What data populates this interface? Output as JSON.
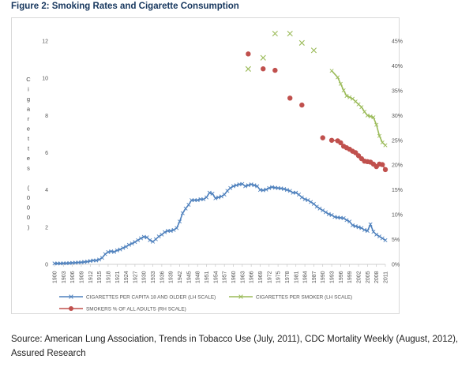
{
  "figure_title": "Figure 2: Smoking Rates and Cigarette Consumption",
  "source_text": "Source: American Lung Association, Trends in Tobacco Use (July, 2011), CDC Mortality Weekly (August, 2012), Assured Research",
  "chart_data": {
    "type": "line",
    "title": "",
    "ylabel_left": "Cigarettes (000)",
    "left_axis": {
      "min": 0,
      "max": 12,
      "ticks": [
        0,
        2,
        4,
        6,
        8,
        10,
        12
      ]
    },
    "right_axis": {
      "min": 0,
      "max": 45,
      "ticks": [
        0,
        5,
        10,
        15,
        20,
        25,
        30,
        35,
        40,
        45
      ],
      "tick_labels": [
        "0%",
        "5%",
        "10%",
        "15%",
        "20%",
        "25%",
        "30%",
        "35%",
        "40%",
        "45%"
      ]
    },
    "x_range": [
      1900,
      2011
    ],
    "x_tick_labels": [
      "1900",
      "1903",
      "1906",
      "1909",
      "1912",
      "1915",
      "1918",
      "1921",
      "1924",
      "1927",
      "1930",
      "1933",
      "1936",
      "1939",
      "1942",
      "1945",
      "1948",
      "1951",
      "1954",
      "1957",
      "1960",
      "1963",
      "1966",
      "1969",
      "1972",
      "1975",
      "1978",
      "1981",
      "1984",
      "1987",
      "1990",
      "1993",
      "1996",
      "1999",
      "2002",
      "2005",
      "2008",
      "2011"
    ],
    "legend_position": "bottom",
    "grid": false,
    "series": [
      {
        "name": "CIGARETTES PER CAPITA 18 AND OLDER (LH SCALE)",
        "axis": "left",
        "color": "#4f81bd",
        "marker": "x",
        "x": [
          1900,
          1901,
          1902,
          1903,
          1904,
          1905,
          1906,
          1907,
          1908,
          1909,
          1910,
          1911,
          1912,
          1913,
          1914,
          1915,
          1916,
          1917,
          1918,
          1919,
          1920,
          1921,
          1922,
          1923,
          1924,
          1925,
          1926,
          1927,
          1928,
          1929,
          1930,
          1931,
          1932,
          1933,
          1934,
          1935,
          1936,
          1937,
          1938,
          1939,
          1940,
          1941,
          1942,
          1943,
          1944,
          1945,
          1946,
          1947,
          1948,
          1949,
          1950,
          1951,
          1952,
          1953,
          1954,
          1955,
          1956,
          1957,
          1958,
          1959,
          1960,
          1961,
          1962,
          1963,
          1964,
          1965,
          1966,
          1967,
          1968,
          1969,
          1970,
          1971,
          1972,
          1973,
          1974,
          1975,
          1976,
          1977,
          1978,
          1979,
          1980,
          1981,
          1982,
          1983,
          1984,
          1985,
          1986,
          1987,
          1988,
          1989,
          1990,
          1991,
          1992,
          1993,
          1994,
          1995,
          1996,
          1997,
          1998,
          1999,
          2000,
          2001,
          2002,
          2003,
          2004,
          2005,
          2006,
          2007,
          2008,
          2009,
          2010,
          2011
        ],
        "values": [
          0.05,
          0.05,
          0.05,
          0.06,
          0.06,
          0.07,
          0.08,
          0.09,
          0.1,
          0.11,
          0.13,
          0.15,
          0.18,
          0.21,
          0.21,
          0.26,
          0.35,
          0.55,
          0.66,
          0.7,
          0.67,
          0.75,
          0.8,
          0.88,
          0.95,
          1.05,
          1.12,
          1.2,
          1.3,
          1.4,
          1.48,
          1.45,
          1.3,
          1.22,
          1.35,
          1.5,
          1.6,
          1.73,
          1.8,
          1.8,
          1.85,
          1.95,
          2.3,
          2.75,
          3.0,
          3.2,
          3.45,
          3.45,
          3.45,
          3.5,
          3.5,
          3.6,
          3.85,
          3.8,
          3.55,
          3.6,
          3.65,
          3.75,
          3.95,
          4.1,
          4.2,
          4.25,
          4.3,
          4.32,
          4.2,
          4.25,
          4.3,
          4.25,
          4.2,
          4.0,
          3.98,
          4.02,
          4.1,
          4.15,
          4.12,
          4.1,
          4.08,
          4.05,
          4.0,
          3.95,
          3.85,
          3.85,
          3.75,
          3.6,
          3.5,
          3.45,
          3.35,
          3.25,
          3.1,
          3.0,
          2.9,
          2.8,
          2.7,
          2.65,
          2.55,
          2.52,
          2.5,
          2.48,
          2.38,
          2.3,
          2.1,
          2.05,
          2.0,
          1.95,
          1.85,
          1.8,
          2.15,
          1.75,
          1.6,
          1.5,
          1.4,
          1.3
        ],
        "line_label_note": ""
      },
      {
        "name": "CIGARETTES PER SMOKER (LH SCALE)",
        "axis": "left",
        "color": "#9bbb59",
        "marker": "x",
        "scatter_x": [
          1965,
          1970,
          1974,
          1979,
          1983,
          1987
        ],
        "scatter_values": [
          10.5,
          11.1,
          12.4,
          12.4,
          11.9,
          11.5
        ],
        "x": [
          1993,
          1995,
          1996,
          1997,
          1998,
          1999,
          2000,
          2001,
          2002,
          2003,
          2004,
          2005,
          2006,
          2007,
          2008,
          2009,
          2010,
          2011
        ],
        "values": [
          10.4,
          10.05,
          9.7,
          9.35,
          9.05,
          8.98,
          8.9,
          8.75,
          8.6,
          8.45,
          8.2,
          8.0,
          7.95,
          7.9,
          7.5,
          6.9,
          6.55,
          6.4
        ]
      },
      {
        "name": "SMOKERS % OF ALL ADULTS (RH SCALE)",
        "axis": "right",
        "color": "#c0504d",
        "marker": "dot",
        "scatter_x": [
          1965,
          1970,
          1974,
          1979,
          1983,
          1990
        ],
        "scatter_values": [
          42.4,
          39.4,
          39.1,
          33.5,
          32.1,
          25.5
        ],
        "x": [
          1993,
          1995,
          1996,
          1997,
          1998,
          1999,
          2000,
          2001,
          2002,
          2003,
          2004,
          2005,
          2006,
          2007,
          2008,
          2009,
          2010,
          2011
        ],
        "values": [
          25.0,
          24.9,
          24.5,
          23.8,
          23.5,
          23.2,
          22.8,
          22.5,
          21.9,
          21.3,
          20.8,
          20.7,
          20.6,
          20.2,
          19.7,
          20.2,
          20.1,
          19.1
        ]
      }
    ]
  }
}
